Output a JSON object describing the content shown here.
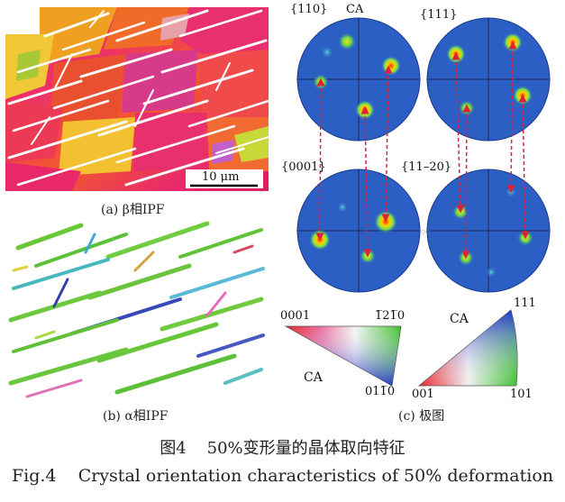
{
  "panel_a": {
    "caption": "(a) β相IPF",
    "scale_bar": "10 μm"
  },
  "panel_b": {
    "caption": "(b) α相IPF"
  },
  "panel_c": {
    "caption": "(c) 极图",
    "pole_figures": {
      "p110": "{110}",
      "p110_ca": "CA",
      "p111": "{111}",
      "p0001": "{0001}",
      "p1120": "{11–20}"
    },
    "triangle_hex": {
      "top_left": "0001",
      "top_right": "1̅21̅0",
      "bottom": "011̅0",
      "ca": "CA"
    },
    "triangle_cubic": {
      "top": "111",
      "bottom_left": "001",
      "bottom_right": "101",
      "ca": "CA"
    }
  },
  "figure": {
    "number_cn": "图4",
    "title_cn": "50%变形量的晶体取向特征",
    "number_en": "Fig.4",
    "title_en": "Crystal orientation characteristics of 50% deformation"
  }
}
